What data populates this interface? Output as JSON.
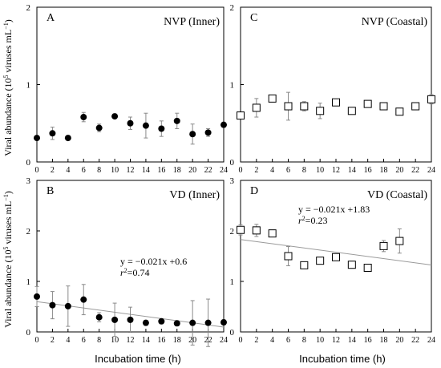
{
  "chart_data": [
    {
      "type": "scatter",
      "panel_letter": "A",
      "title": "NVP (Inner)",
      "ylabel_parts": [
        "Viral abundance (10",
        "5",
        " viruses mL",
        "−1",
        ")"
      ],
      "xticks": [
        "0",
        "2",
        "4",
        "6",
        "8",
        "10",
        "12",
        "14",
        "16",
        "18",
        "20",
        "22",
        "24"
      ],
      "yticks": [
        "0",
        "1",
        "2"
      ],
      "ylim": [
        0,
        2
      ],
      "xlim": [
        0,
        24
      ],
      "marker": "filled-circle",
      "x": [
        0,
        2,
        4,
        6,
        8,
        10,
        12,
        14,
        16,
        18,
        20,
        22,
        24
      ],
      "y": [
        0.31,
        0.37,
        0.31,
        0.58,
        0.44,
        0.59,
        0.5,
        0.47,
        0.43,
        0.53,
        0.36,
        0.38,
        0.48
      ],
      "err": [
        0.03,
        0.08,
        0.03,
        0.06,
        0.05,
        0.03,
        0.08,
        0.16,
        0.1,
        0.1,
        0.13,
        0.05,
        0.03
      ],
      "regression": null
    },
    {
      "type": "scatter",
      "panel_letter": "C",
      "title": "NVP (Coastal)",
      "xticks": [
        "0",
        "2",
        "4",
        "6",
        "8",
        "10",
        "12",
        "14",
        "16",
        "18",
        "20",
        "22",
        "24"
      ],
      "yticks": [
        "0",
        "1",
        "2"
      ],
      "ylim": [
        0,
        2
      ],
      "xlim": [
        0,
        24
      ],
      "marker": "open-square",
      "x": [
        0,
        2,
        4,
        6,
        8,
        10,
        12,
        14,
        16,
        18,
        20,
        22,
        24
      ],
      "y": [
        0.6,
        0.7,
        0.82,
        0.72,
        0.72,
        0.66,
        0.77,
        0.66,
        0.75,
        0.72,
        0.65,
        0.72,
        0.81
      ],
      "err": [
        0.03,
        0.12,
        0.04,
        0.18,
        0.06,
        0.1,
        0.04,
        0.04,
        0.03,
        0.03,
        0.04,
        0.03,
        0.06
      ],
      "regression": null
    },
    {
      "type": "scatter",
      "panel_letter": "B",
      "title": "VD (Inner)",
      "ylabel_parts": [
        "Viral abundance (10",
        "5",
        " viruses mL",
        "−1",
        ")"
      ],
      "xticks": [
        "0",
        "2",
        "4",
        "6",
        "8",
        "10",
        "12",
        "14",
        "16",
        "18",
        "20",
        "22",
        "24"
      ],
      "yticks": [
        "0",
        "1",
        "2",
        "3"
      ],
      "ylim": [
        0,
        3
      ],
      "xlim": [
        0,
        24
      ],
      "marker": "filled-circle",
      "x": [
        0,
        2,
        4,
        6,
        8,
        10,
        12,
        14,
        16,
        18,
        20,
        22,
        24
      ],
      "y": [
        0.7,
        0.53,
        0.51,
        0.64,
        0.29,
        0.24,
        0.24,
        0.18,
        0.21,
        0.17,
        0.18,
        0.18,
        0.19
      ],
      "err": [
        0.2,
        0.27,
        0.4,
        0.3,
        0.09,
        0.33,
        0.25,
        0.05,
        0.05,
        0.05,
        0.44,
        0.47,
        0.05
      ],
      "regression": {
        "slope": -0.021,
        "intercept": 0.6,
        "equation": "y = −0.021x +0.6",
        "r2_label": "r",
        "r2_sup": "2",
        "r2_value": "=0.74"
      }
    },
    {
      "type": "scatter",
      "panel_letter": "D",
      "title": "VD (Coastal)",
      "xticks": [
        "0",
        "2",
        "4",
        "6",
        "8",
        "10",
        "12",
        "14",
        "16",
        "18",
        "20",
        "22",
        "24"
      ],
      "yticks": [
        "0",
        "1",
        "2",
        "3"
      ],
      "ylim": [
        0,
        3
      ],
      "xlim": [
        0,
        24
      ],
      "marker": "open-square",
      "x": [
        0,
        2,
        4,
        6,
        8,
        10,
        12,
        14,
        16,
        18,
        20
      ],
      "y": [
        2.02,
        2.01,
        1.95,
        1.5,
        1.32,
        1.41,
        1.48,
        1.33,
        1.27,
        1.7,
        1.8
      ],
      "err": [
        0.1,
        0.12,
        0.04,
        0.19,
        0.05,
        0.05,
        0.05,
        0.07,
        0.05,
        0.11,
        0.24
      ],
      "regression": {
        "slope": -0.021,
        "intercept": 1.83,
        "equation": "y = −0.021x +1.83",
        "r2_label": "r",
        "r2_sup": "2",
        "r2_value": "=0.23"
      }
    }
  ],
  "xlabel": "Incubation time (h)"
}
